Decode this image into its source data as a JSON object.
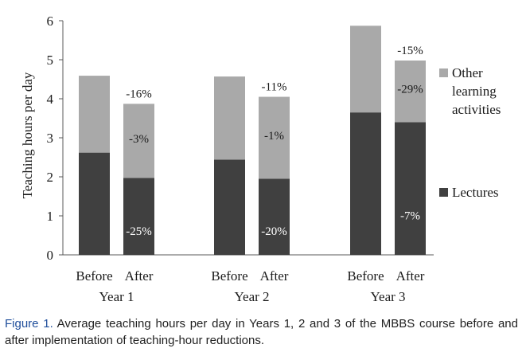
{
  "chart_data": {
    "type": "bar",
    "stacked": true,
    "ylabel": "Teaching hours per day",
    "ylim": [
      0,
      6
    ],
    "yticks": [
      "0",
      "1",
      "2",
      "3",
      "4",
      "5",
      "6"
    ],
    "groups": [
      {
        "label": "Year 1",
        "bars": [
          {
            "label": "Before",
            "lectures": 2.62,
            "other": 1.97,
            "lectures_change": "",
            "other_change": "",
            "total_change": ""
          },
          {
            "label": "After",
            "lectures": 1.97,
            "other": 1.9,
            "lectures_change": "-25%",
            "other_change": "-3%",
            "total_change": "-16%"
          }
        ]
      },
      {
        "label": "Year 2",
        "bars": [
          {
            "label": "Before",
            "lectures": 2.44,
            "other": 2.13,
            "lectures_change": "",
            "other_change": "",
            "total_change": ""
          },
          {
            "label": "After",
            "lectures": 1.95,
            "other": 2.1,
            "lectures_change": "-20%",
            "other_change": "-1%",
            "total_change": "-11%"
          }
        ]
      },
      {
        "label": "Year 3",
        "bars": [
          {
            "label": "Before",
            "lectures": 3.65,
            "other": 2.22,
            "lectures_change": "",
            "other_change": "",
            "total_change": ""
          },
          {
            "label": "After",
            "lectures": 3.4,
            "other": 1.58,
            "lectures_change": "-7%",
            "other_change": "-29%",
            "total_change": "-15%"
          }
        ]
      }
    ],
    "legend": {
      "placement": "right",
      "other_lines": [
        "Other",
        "learning",
        "activities"
      ],
      "lectures": "Lectures"
    },
    "colors": {
      "lectures": "#404040",
      "other": "#a9a9a9",
      "axis": "#595959"
    },
    "grid": false
  },
  "caption": {
    "label": "Figure 1.",
    "text": "Average teaching hours per day in Years 1, 2 and 3 of the MBBS course before and after implementation of teaching-hour reductions."
  }
}
